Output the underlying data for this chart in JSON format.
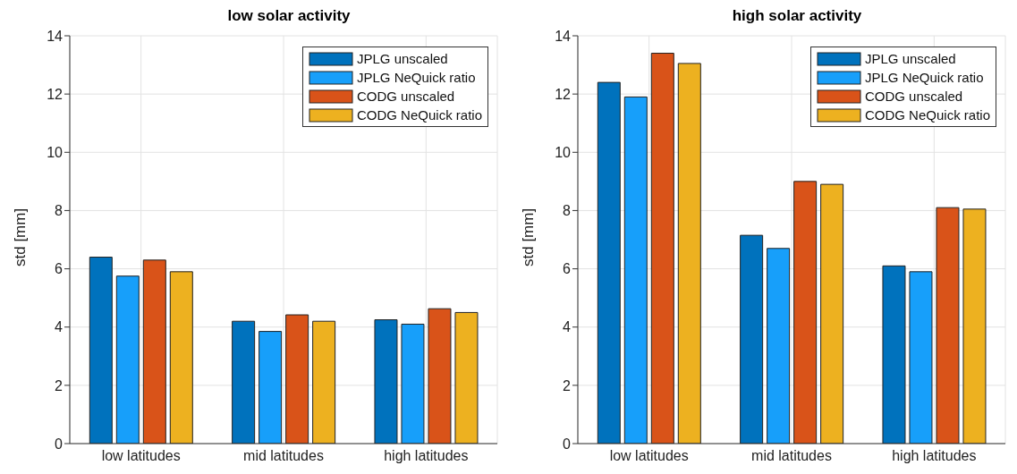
{
  "chart_data": [
    {
      "type": "bar",
      "title": "low solar activity",
      "ylabel": "std [mm]",
      "categories": [
        "low latitudes",
        "mid latitudes",
        "high latitudes"
      ],
      "ylim": [
        0,
        14
      ],
      "yticks": [
        0,
        2,
        4,
        6,
        8,
        10,
        12,
        14
      ],
      "grid": true,
      "legend": "top right",
      "series": [
        {
          "name": "JPLG unscaled",
          "color": "#0072bd",
          "values": [
            6.4,
            4.2,
            4.25
          ]
        },
        {
          "name": "JPLG NeQuick ratio",
          "color": "#179ffa",
          "values": [
            5.75,
            3.85,
            4.1
          ]
        },
        {
          "name": "CODG unscaled",
          "color": "#d95319",
          "values": [
            6.3,
            4.42,
            4.63
          ]
        },
        {
          "name": "CODG NeQuick ratio",
          "color": "#edb120",
          "values": [
            5.9,
            4.2,
            4.5
          ]
        }
      ]
    },
    {
      "type": "bar",
      "title": "high solar activity",
      "ylabel": "std [mm]",
      "categories": [
        "low latitudes",
        "mid latitudes",
        "high latitudes"
      ],
      "ylim": [
        0,
        14
      ],
      "yticks": [
        0,
        2,
        4,
        6,
        8,
        10,
        12,
        14
      ],
      "grid": true,
      "legend": "top right",
      "series": [
        {
          "name": "JPLG unscaled",
          "color": "#0072bd",
          "values": [
            12.4,
            7.15,
            6.1
          ]
        },
        {
          "name": "JPLG NeQuick ratio",
          "color": "#179ffa",
          "values": [
            11.9,
            6.7,
            5.9
          ]
        },
        {
          "name": "CODG unscaled",
          "color": "#d95319",
          "values": [
            13.4,
            9.0,
            8.1
          ]
        },
        {
          "name": "CODG NeQuick ratio",
          "color": "#edb120",
          "values": [
            13.05,
            8.9,
            8.05
          ]
        }
      ]
    }
  ]
}
